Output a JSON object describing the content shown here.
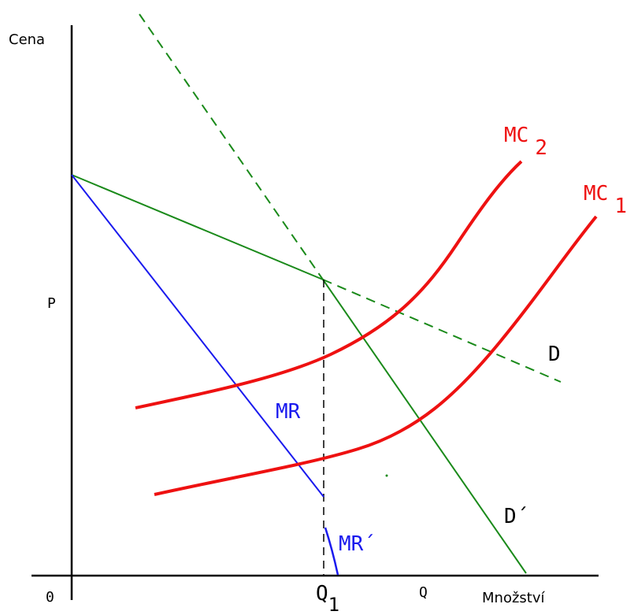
{
  "labels": {
    "y_axis": "Cena",
    "x_axis": "Množství",
    "origin": "0",
    "price": "P",
    "q1_main": "Q",
    "q1_sub": "1",
    "q": "Q",
    "mc2_main": "MC",
    "mc2_sub": "2",
    "mc1_main": "MC",
    "mc1_sub": "1",
    "d": "D",
    "d_prime": "D´",
    "mr": "MR",
    "mr_prime": "MR´"
  },
  "colors": {
    "axis": "#000000",
    "demand": "#1a8a1a",
    "marginal_revenue": "#1a1aee",
    "marginal_cost": "#ee1111",
    "guide": "#000000"
  }
}
